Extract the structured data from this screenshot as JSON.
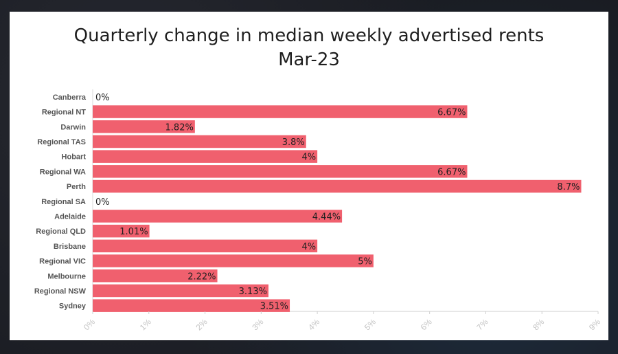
{
  "chart_data": {
    "type": "bar",
    "orientation": "horizontal",
    "title": "Quarterly change in median weekly advertised rents",
    "subtitle": "Mar-23",
    "xlabel": "",
    "ylabel": "",
    "xlim": [
      0,
      9
    ],
    "x_ticks": [
      "0%",
      "1%",
      "2%",
      "3%",
      "4%",
      "5%",
      "6%",
      "7%",
      "8%",
      "9%"
    ],
    "categories": [
      "Canberra",
      "Regional NT",
      "Darwin",
      "Regional TAS",
      "Hobart",
      "Regional WA",
      "Perth",
      "Regional SA",
      "Adelaide",
      "Regional QLD",
      "Brisbane",
      "Regional VIC",
      "Melbourne",
      "Regional NSW",
      "Sydney"
    ],
    "values": [
      0,
      6.67,
      1.82,
      3.8,
      4,
      6.67,
      8.7,
      0,
      4.44,
      1.01,
      4,
      5,
      2.22,
      3.13,
      3.51
    ],
    "data_labels": [
      "0%",
      "6.67%",
      "1.82%",
      "3.8%",
      "4%",
      "6.67%",
      "8.7%",
      "0%",
      "4.44%",
      "1.01%",
      "4%",
      "5%",
      "2.22%",
      "3.13%",
      "3.51%"
    ],
    "bar_color": "#f0606e",
    "grid": false,
    "legend": "none"
  }
}
